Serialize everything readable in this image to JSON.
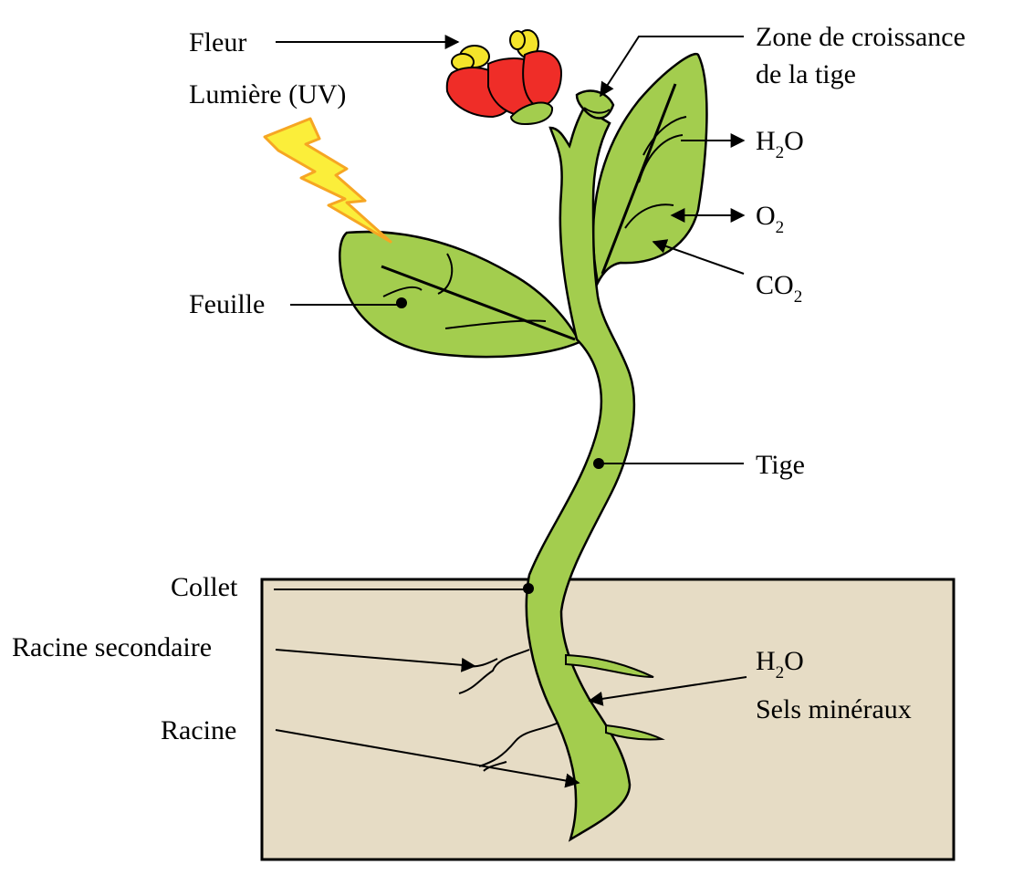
{
  "labels": {
    "fleur": "Fleur",
    "lumiere": "Lumière (UV)",
    "zone_line1": "Zone de croissance",
    "zone_line2": "de la tige",
    "feuille": "Feuille",
    "tige": "Tige",
    "collet": "Collet",
    "racine_secondaire": "Racine secondaire",
    "racine": "Racine",
    "h2o_leaf": {
      "main": "H",
      "sub": "2",
      "tail": "O"
    },
    "o2": {
      "main": "O",
      "sub": "2"
    },
    "co2": {
      "main": "CO",
      "sub": "2"
    },
    "h2o_root": {
      "main": "H",
      "sub": "2",
      "tail": "O"
    },
    "sels": "Sels minéraux"
  },
  "colors": {
    "plant_green": "#a3cd4e",
    "soil": "#e6dcc5",
    "flower_red": "#ef2d28",
    "flower_yellow": "#f4e42a",
    "lightning_yellow": "#fbee3a",
    "lightning_outline": "#f6a623",
    "outline": "#000000"
  }
}
